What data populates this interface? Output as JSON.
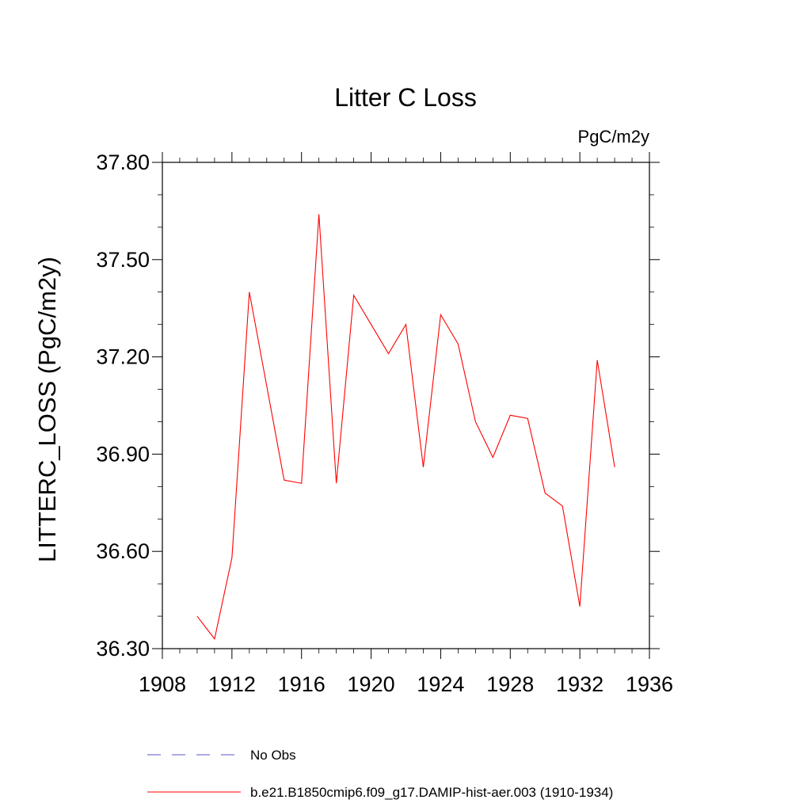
{
  "chart_data": {
    "type": "line",
    "title": "Litter C Loss",
    "units_label": "PgC/m2y",
    "ylabel": "LITTERC_LOSS  (PgC/m2y)",
    "xlim": [
      1908,
      1936
    ],
    "ylim": [
      36.3,
      37.8
    ],
    "x_ticks": [
      1908,
      1912,
      1916,
      1920,
      1924,
      1928,
      1932,
      1936
    ],
    "x_tick_labels": [
      "1908",
      "1912",
      "1916",
      "1920",
      "1924",
      "1928",
      "1932",
      "1936"
    ],
    "y_ticks": [
      36.3,
      36.6,
      36.9,
      37.2,
      37.5,
      37.8
    ],
    "y_tick_labels": [
      "36.30",
      "36.60",
      "36.90",
      "37.20",
      "37.50",
      "37.80"
    ],
    "grid": false,
    "legend_position": "bottom-left",
    "series": [
      {
        "name": "No Obs",
        "color": "#5555cc",
        "dash": true,
        "x": [],
        "values": []
      },
      {
        "name": "b.e21.B1850cmip6.f09_g17.DAMIP-hist-aer.003 (1910-1934)",
        "color": "#ff0000",
        "dash": false,
        "x": [
          1910,
          1911,
          1912,
          1913,
          1914,
          1915,
          1916,
          1917,
          1918,
          1919,
          1920,
          1921,
          1922,
          1923,
          1924,
          1925,
          1926,
          1927,
          1928,
          1929,
          1930,
          1931,
          1932,
          1933,
          1934
        ],
        "values": [
          36.4,
          36.33,
          36.58,
          37.4,
          37.11,
          36.82,
          36.81,
          37.64,
          36.81,
          37.39,
          37.3,
          37.21,
          37.3,
          36.86,
          37.33,
          37.24,
          37.0,
          36.89,
          37.02,
          37.01,
          36.78,
          36.74,
          36.43,
          37.19,
          36.86
        ]
      }
    ]
  }
}
